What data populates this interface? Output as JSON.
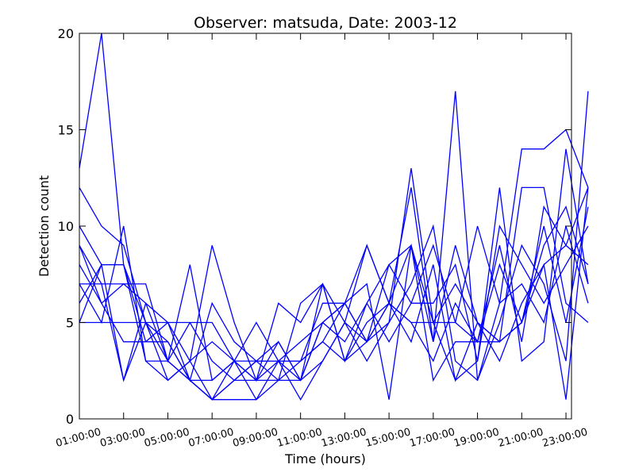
{
  "chart_data": {
    "type": "line",
    "title": "Observer: matsuda, Date: 2003-12",
    "xlabel": "Time (hours)",
    "ylabel": "Detection count",
    "x_tick_labels": [
      "01:00:00",
      "03:00:00",
      "05:00:00",
      "07:00:00",
      "09:00:00",
      "11:00:00",
      "13:00:00",
      "15:00:00",
      "17:00:00",
      "19:00:00",
      "21:00:00",
      "23:00:00"
    ],
    "y_tick_labels": [
      "0",
      "5",
      "10",
      "15",
      "20"
    ],
    "xlim": [
      1,
      23.25
    ],
    "ylim": [
      0,
      20
    ],
    "grid": false,
    "legend": "none",
    "line_color": "#0000ff",
    "x_hours": [
      1,
      2,
      3,
      4,
      5,
      6,
      7,
      8,
      9,
      10,
      11,
      12,
      13,
      14,
      15,
      16,
      17,
      18,
      19,
      20,
      21,
      22,
      23,
      24
    ],
    "series": [
      {
        "values": [
          13,
          20,
          8,
          4,
          4,
          2,
          1,
          2,
          3,
          3,
          2,
          7,
          3,
          4,
          8,
          9,
          4,
          17,
          2,
          6,
          14,
          14,
          15,
          12
        ]
      },
      {
        "values": [
          12,
          10,
          9,
          5,
          3,
          2,
          2,
          3,
          5,
          3,
          3,
          6,
          6,
          4,
          5,
          13,
          5,
          2,
          3,
          12,
          3,
          4,
          14,
          7
        ]
      },
      {
        "values": [
          10,
          8,
          8,
          3,
          3,
          5,
          5,
          3,
          3,
          2,
          2,
          5,
          6,
          9,
          6,
          12,
          4,
          9,
          5,
          4,
          12,
          12,
          6,
          5
        ]
      },
      {
        "values": [
          9,
          7,
          2,
          6,
          5,
          2,
          6,
          4,
          3,
          3,
          1,
          3,
          5,
          3,
          5,
          7,
          10,
          3,
          2,
          5,
          9,
          7,
          3,
          17
        ]
      },
      {
        "values": [
          8,
          6,
          7,
          6,
          3,
          8,
          2,
          3,
          2,
          4,
          2,
          5,
          6,
          4,
          6,
          9,
          2,
          4,
          4,
          9,
          4,
          11,
          9,
          8
        ]
      },
      {
        "values": [
          7,
          5,
          10,
          3,
          2,
          3,
          9,
          5,
          2,
          6,
          5,
          7,
          3,
          6,
          8,
          6,
          6,
          8,
          3,
          10,
          8,
          6,
          8,
          10
        ]
      },
      {
        "values": [
          9,
          6,
          4,
          4,
          5,
          5,
          3,
          2,
          3,
          4,
          2,
          3,
          5,
          9,
          6,
          5,
          5,
          5,
          10,
          6,
          7,
          5,
          10,
          6
        ]
      },
      {
        "values": [
          6,
          8,
          2,
          5,
          4,
          2,
          1,
          1,
          1,
          3,
          3,
          4,
          6,
          7,
          1,
          9,
          5,
          7,
          5,
          3,
          6,
          8,
          1,
          12
        ]
      },
      {
        "values": [
          5,
          5,
          5,
          5,
          5,
          3,
          4,
          3,
          2,
          2,
          6,
          7,
          5,
          4,
          6,
          4,
          8,
          2,
          5,
          4,
          5,
          10,
          5,
          11
        ]
      },
      {
        "values": [
          7,
          7,
          7,
          7,
          3,
          2,
          1,
          2,
          2,
          3,
          4,
          5,
          4,
          6,
          4,
          6,
          9,
          5,
          4,
          4,
          5,
          8,
          9,
          12
        ]
      },
      {
        "values": [
          5,
          8,
          8,
          5,
          2,
          3,
          1,
          3,
          1,
          2,
          3,
          4,
          3,
          5,
          6,
          5,
          3,
          6,
          4,
          8,
          5,
          9,
          11,
          7
        ]
      }
    ]
  }
}
